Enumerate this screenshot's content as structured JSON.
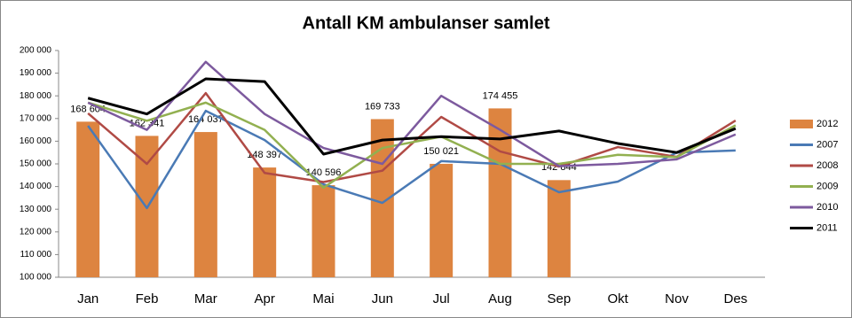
{
  "chart_data": {
    "type": "combo",
    "title": "Antall KM ambulanser samlet",
    "categories": [
      "Jan",
      "Feb",
      "Mar",
      "Apr",
      "Mai",
      "Jun",
      "Jul",
      "Aug",
      "Sep",
      "Okt",
      "Nov",
      "Des"
    ],
    "ylim": [
      100000,
      200000
    ],
    "yticks": [
      {
        "value": 100000,
        "label": "100 000"
      },
      {
        "value": 110000,
        "label": "110 000"
      },
      {
        "value": 120000,
        "label": "120 000"
      },
      {
        "value": 130000,
        "label": "130 000"
      },
      {
        "value": 140000,
        "label": "140 000"
      },
      {
        "value": 150000,
        "label": "150 000"
      },
      {
        "value": 160000,
        "label": "160 000"
      },
      {
        "value": 170000,
        "label": "170 000"
      },
      {
        "value": 180000,
        "label": "180 000"
      },
      {
        "value": 190000,
        "label": "190 000"
      },
      {
        "value": 200000,
        "label": "200 000"
      }
    ],
    "legend": "right",
    "series": [
      {
        "name": "2012",
        "type": "bar",
        "color": "#dd8440",
        "values": [
          168604,
          162341,
          164037,
          148397,
          140596,
          169733,
          150021,
          174455,
          142844,
          null,
          null,
          null
        ],
        "value_labels": [
          "168 604",
          "162 341",
          "164 037",
          "148 397",
          "140 596",
          "169 733",
          "150 021",
          "174 455",
          "142 844",
          null,
          null,
          null
        ]
      },
      {
        "name": "2007",
        "type": "line",
        "color": "#4a7ab5",
        "values": [
          166800,
          130500,
          173400,
          160500,
          141000,
          132800,
          151200,
          150000,
          137500,
          142200,
          155000,
          155900
        ]
      },
      {
        "name": "2008",
        "type": "line",
        "color": "#b04a45",
        "values": [
          172300,
          150000,
          181200,
          146000,
          142000,
          147000,
          170700,
          155500,
          148800,
          157400,
          153100,
          169100
        ]
      },
      {
        "name": "2009",
        "type": "line",
        "color": "#92b050",
        "values": [
          177000,
          169000,
          177000,
          165000,
          139500,
          157000,
          162000,
          150000,
          150000,
          154000,
          153000,
          167000
        ]
      },
      {
        "name": "2010",
        "type": "line",
        "color": "#7d5a9e",
        "values": [
          177000,
          165000,
          195000,
          172000,
          157000,
          150000,
          180000,
          165000,
          149000,
          150000,
          152000,
          163000
        ]
      },
      {
        "name": "2011",
        "type": "line",
        "color": "#000000",
        "values": [
          179000,
          172000,
          187500,
          186300,
          154300,
          160500,
          162000,
          161000,
          164500,
          159000,
          155000,
          165600
        ]
      }
    ]
  }
}
